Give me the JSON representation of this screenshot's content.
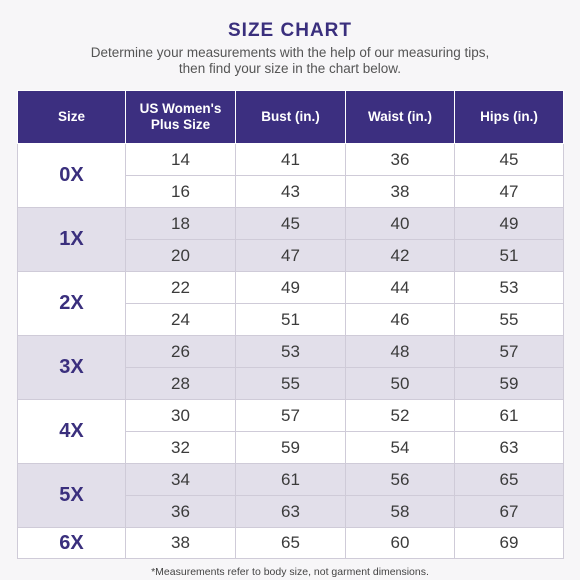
{
  "title": "SIZE CHART",
  "subtitle_line1": "Determine your measurements with the help of our measuring tips,",
  "subtitle_line2": "then find your size in the chart below.",
  "headers": {
    "size": "Size",
    "us_line1": "US Women's",
    "us_line2": "Plus Size",
    "bust": "Bust (in.)",
    "waist": "Waist (in.)",
    "hips": "Hips (in.)"
  },
  "groups": [
    {
      "size": "0X",
      "rows": [
        {
          "us": "14",
          "bust": "41",
          "waist": "36",
          "hips": "45"
        },
        {
          "us": "16",
          "bust": "43",
          "waist": "38",
          "hips": "47"
        }
      ]
    },
    {
      "size": "1X",
      "rows": [
        {
          "us": "18",
          "bust": "45",
          "waist": "40",
          "hips": "49"
        },
        {
          "us": "20",
          "bust": "47",
          "waist": "42",
          "hips": "51"
        }
      ]
    },
    {
      "size": "2X",
      "rows": [
        {
          "us": "22",
          "bust": "49",
          "waist": "44",
          "hips": "53"
        },
        {
          "us": "24",
          "bust": "51",
          "waist": "46",
          "hips": "55"
        }
      ]
    },
    {
      "size": "3X",
      "rows": [
        {
          "us": "26",
          "bust": "53",
          "waist": "48",
          "hips": "57"
        },
        {
          "us": "28",
          "bust": "55",
          "waist": "50",
          "hips": "59"
        }
      ]
    },
    {
      "size": "4X",
      "rows": [
        {
          "us": "30",
          "bust": "57",
          "waist": "52",
          "hips": "61"
        },
        {
          "us": "32",
          "bust": "59",
          "waist": "54",
          "hips": "63"
        }
      ]
    },
    {
      "size": "5X",
      "rows": [
        {
          "us": "34",
          "bust": "61",
          "waist": "56",
          "hips": "65"
        },
        {
          "us": "36",
          "bust": "63",
          "waist": "58",
          "hips": "67"
        }
      ]
    },
    {
      "size": "6X",
      "rows": [
        {
          "us": "38",
          "bust": "65",
          "waist": "60",
          "hips": "69"
        }
      ]
    }
  ],
  "footnote": "*Measurements refer to body size, not garment dimensions.",
  "colors": {
    "header_bg": "#3c2f80",
    "accent_text": "#3a2f7d",
    "shade_row": "#e2dfea",
    "plain_row": "#ffffff"
  }
}
